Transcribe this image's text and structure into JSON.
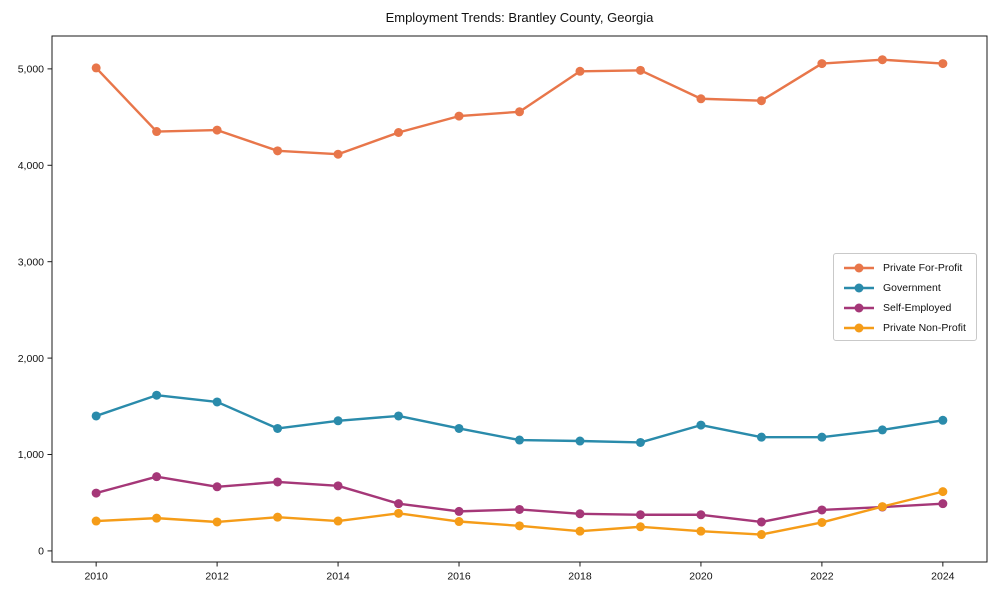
{
  "chart_data": {
    "type": "line",
    "title": "Employment Trends: Brantley County, Georgia",
    "xlabel": "",
    "ylabel": "",
    "x": [
      2010,
      2011,
      2012,
      2013,
      2014,
      2015,
      2016,
      2017,
      2018,
      2019,
      2020,
      2021,
      2022,
      2023,
      2024
    ],
    "xticks": [
      2010,
      2012,
      2014,
      2016,
      2018,
      2020,
      2022,
      2024
    ],
    "yticks": [
      0,
      1000,
      2000,
      3000,
      4000,
      5000
    ],
    "xlim": [
      2009.27,
      2024.73
    ],
    "ylim": [
      -115,
      5341
    ],
    "grid": false,
    "legend_position": "center-right-inside",
    "axis_color": "#1a1a1a",
    "series": [
      {
        "name": "Private For-Profit",
        "color": "#E8764A",
        "values": [
          5010,
          4350,
          4365,
          4150,
          4115,
          4340,
          4510,
          4555,
          4975,
          4985,
          4690,
          4670,
          5055,
          5095,
          5055
        ]
      },
      {
        "name": "Government",
        "color": "#2A8BAB",
        "values": [
          1400,
          1615,
          1545,
          1270,
          1350,
          1400,
          1270,
          1150,
          1140,
          1125,
          1305,
          1180,
          1180,
          1255,
          1355
        ]
      },
      {
        "name": "Self-Employed",
        "color": "#A53778",
        "values": [
          600,
          770,
          665,
          715,
          675,
          490,
          410,
          430,
          385,
          375,
          375,
          300,
          425,
          455,
          490
        ]
      },
      {
        "name": "Private Non-Profit",
        "color": "#F59C18",
        "values": [
          310,
          340,
          300,
          350,
          310,
          390,
          305,
          260,
          205,
          250,
          205,
          170,
          295,
          460,
          615
        ]
      }
    ]
  }
}
